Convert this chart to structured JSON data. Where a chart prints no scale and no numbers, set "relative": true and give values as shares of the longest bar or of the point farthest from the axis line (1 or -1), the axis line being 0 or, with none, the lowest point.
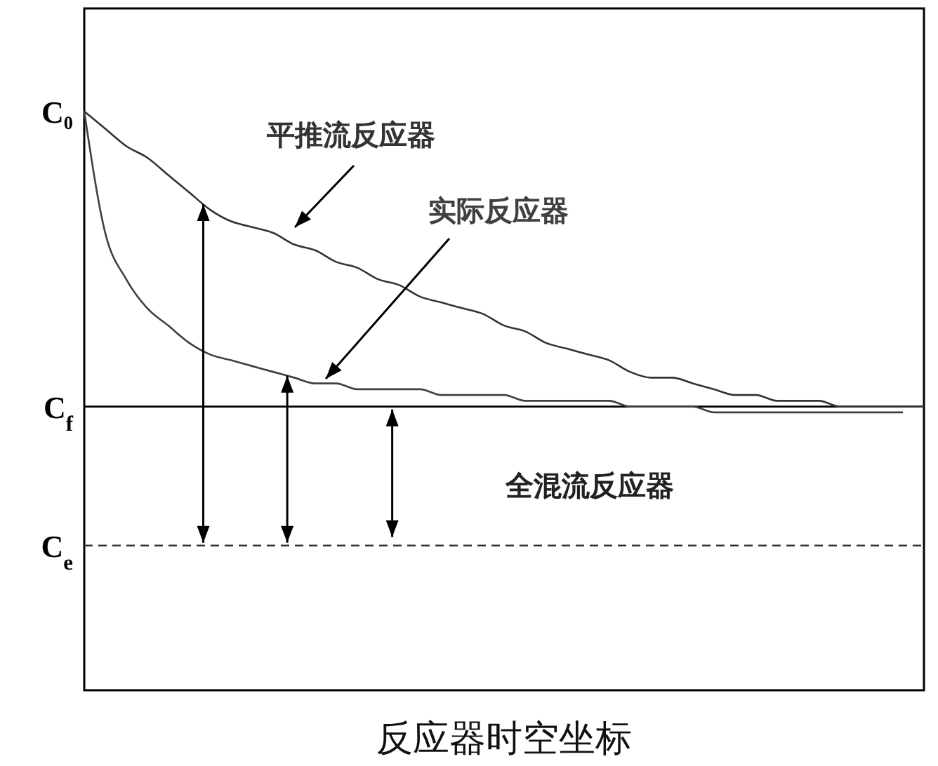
{
  "chart_data": {
    "type": "line",
    "relative": true,
    "xlabel": "反应器时空坐标",
    "categories": [
      null,
      null,
      null,
      null,
      null,
      null,
      null,
      null,
      null,
      null,
      null,
      null,
      null,
      null,
      null,
      null,
      null,
      null,
      null,
      null,
      null,
      null,
      null,
      null,
      null,
      null,
      null,
      null,
      null,
      null,
      null,
      null,
      null,
      null,
      null,
      null,
      null,
      null,
      null,
      null,
      null
    ],
    "series": [
      {
        "name": "平推流反应器",
        "color": "#333333",
        "values": [
          1.0,
          0.97,
          0.94,
          0.92,
          0.89,
          0.86,
          0.83,
          0.81,
          0.8,
          0.79,
          0.77,
          0.76,
          0.74,
          0.73,
          0.71,
          0.7,
          0.68,
          0.67,
          0.66,
          0.65,
          0.63,
          0.62,
          0.6,
          0.59,
          0.58,
          0.57,
          0.55,
          0.54,
          0.54,
          0.53,
          0.52,
          0.51,
          0.51,
          0.5,
          0.5,
          0.5,
          0.49,
          0.49,
          0.49,
          0.49,
          0.49
        ]
      },
      {
        "name": "实际反应器",
        "color": "#404040",
        "values": [
          1.0,
          0.79,
          0.71,
          0.66,
          0.63,
          0.6,
          0.58,
          0.57,
          0.56,
          0.55,
          0.54,
          0.53,
          0.53,
          0.52,
          0.52,
          0.52,
          0.52,
          0.51,
          0.51,
          0.51,
          0.51,
          0.5,
          0.5,
          0.5,
          0.5,
          0.5,
          0.49,
          0.49,
          0.49,
          0.49,
          0.48,
          0.48,
          0.48,
          0.48,
          0.48,
          0.48,
          0.48,
          0.48,
          0.48,
          0.48,
          null
        ]
      }
    ],
    "ref_lines": [
      {
        "axis": "y",
        "value": 0.49,
        "label": "C$_{f}$",
        "color": "#000000",
        "line_style": "solid"
      },
      {
        "axis": "y",
        "value": 0.25,
        "label": "C$_{e}$",
        "color": "#333333",
        "line_style": "dashed"
      }
    ],
    "annotations": [
      "C₀",
      "全混流反应器"
    ],
    "marker": "none",
    "line_style": "solid"
  }
}
